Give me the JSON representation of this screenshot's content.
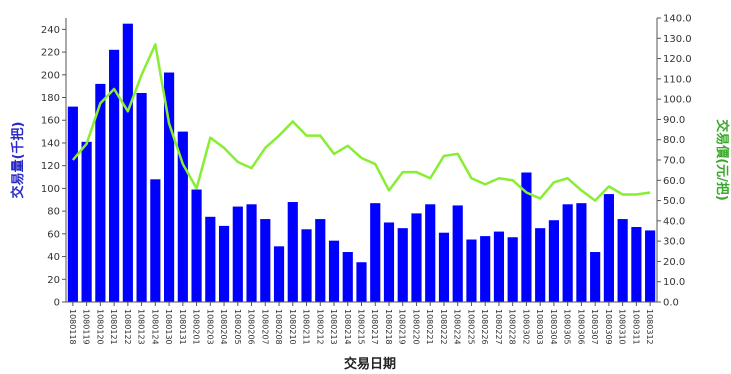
{
  "chart_data": {
    "type": "bar",
    "xlabel": "交易日期",
    "ylabel": "交易量(千把)",
    "y2label": "交易價(元/把)",
    "ylim": [
      0,
      250
    ],
    "y2lim": [
      0,
      140
    ],
    "grid": false,
    "colors": {
      "bar": "#0000ff",
      "line": "#88ee33",
      "ylabel": "#2a2ac8",
      "y2label": "#3aa82a",
      "axis": "#555555"
    },
    "categories": [
      "1080118",
      "1080119",
      "1080120",
      "1080121",
      "1080122",
      "1080123",
      "1080124",
      "1080130",
      "1080131",
      "1080201",
      "1080203",
      "1080204",
      "1080205",
      "1080206",
      "1080207",
      "1080208",
      "1080210",
      "1080211",
      "1080212",
      "1080213",
      "1080214",
      "1080215",
      "1080217",
      "1080218",
      "1080219",
      "1080220",
      "1080221",
      "1080222",
      "1080224",
      "1080225",
      "1080226",
      "1080227",
      "1080228",
      "1080302",
      "1080303",
      "1080304",
      "1080305",
      "1080306",
      "1080307",
      "1080309",
      "1080310",
      "1080311",
      "1080312"
    ],
    "series": [
      {
        "type": "bar",
        "axis": "left",
        "values": [
          172,
          141,
          192,
          222,
          245,
          184,
          108,
          202,
          150,
          99,
          75,
          67,
          84,
          86,
          73,
          49,
          88,
          64,
          73,
          54,
          44,
          35,
          87,
          70,
          65,
          78,
          86,
          61,
          85,
          55,
          58,
          62,
          57,
          114,
          65,
          72,
          86,
          87,
          44,
          95,
          73,
          66,
          63
        ]
      },
      {
        "type": "line",
        "axis": "right",
        "values": [
          70,
          78,
          98,
          105,
          94,
          112,
          127,
          88,
          68,
          56,
          81,
          76,
          69,
          66,
          76,
          82,
          89,
          82,
          82,
          73,
          77,
          71,
          68,
          55,
          64,
          64,
          61,
          72,
          73,
          61,
          58,
          61,
          60,
          54,
          51,
          59,
          61,
          55,
          50,
          57,
          53,
          53,
          54
        ]
      }
    ],
    "y_ticks": [
      "0",
      "20",
      "40",
      "60",
      "80",
      "100",
      "120",
      "140",
      "160",
      "180",
      "200",
      "220",
      "240"
    ],
    "y2_ticks": [
      "0.0",
      "10.0",
      "20.0",
      "30.0",
      "40.0",
      "50.0",
      "60.0",
      "70.0",
      "80.0",
      "90.0",
      "100.0",
      "110.0",
      "120.0",
      "130.0",
      "140.0"
    ]
  }
}
